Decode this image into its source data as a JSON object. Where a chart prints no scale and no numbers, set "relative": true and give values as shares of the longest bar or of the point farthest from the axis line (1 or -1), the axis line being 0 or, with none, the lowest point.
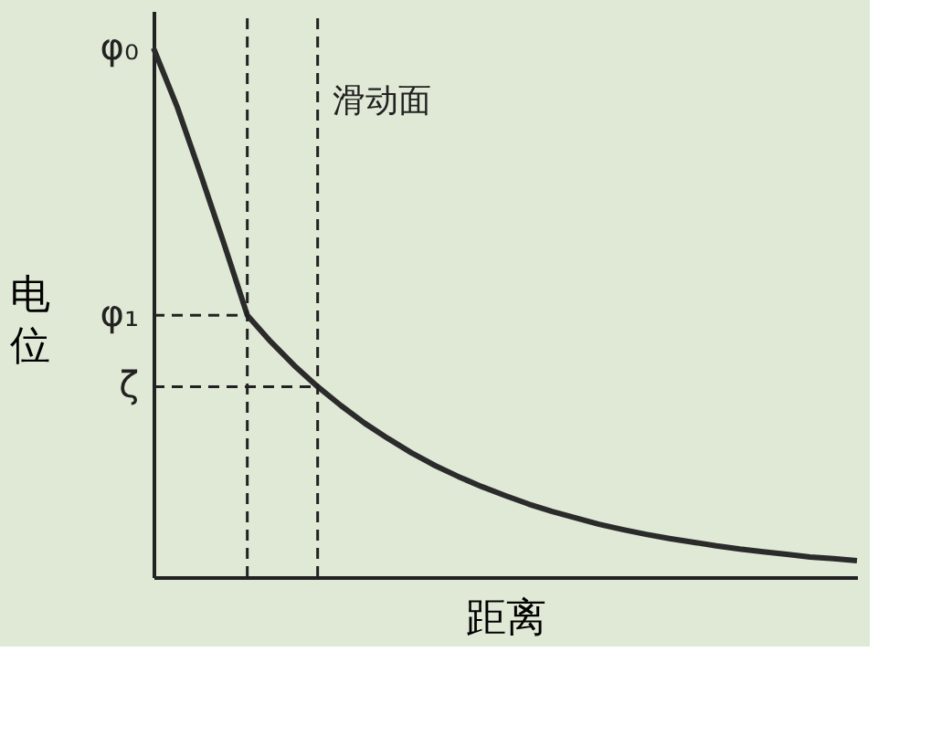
{
  "chart_data": {
    "type": "line",
    "relative": true,
    "xlabel": "距离",
    "ylabel": "电位",
    "categories": [
      null,
      null,
      null,
      null,
      null,
      null,
      null,
      null,
      null,
      null,
      null,
      null,
      null,
      null,
      null,
      null,
      null,
      null,
      null,
      null,
      null,
      null,
      null,
      null,
      null,
      null,
      null,
      null,
      null,
      null,
      null
    ],
    "series": [
      {
        "color": "#2b2b2b",
        "values": [
          1,
          0.89,
          0.763,
          0.631,
          0.495,
          0.445,
          0.4,
          0.36,
          0.324,
          0.291,
          0.262,
          0.235,
          0.211,
          0.19,
          0.171,
          0.154,
          0.138,
          0.124,
          0.112,
          0.1,
          0.09,
          0.081,
          0.073,
          0.066,
          0.059,
          0.053,
          0.048,
          0.043,
          0.038,
          0.035,
          0.031
        ]
      }
    ],
    "annotations": [
      "φ₀",
      "滑动面"
    ],
    "ref_lines": [
      {
        "axis": "y",
        "value": 0.495,
        "label": "φ₁",
        "line_style": "dashed"
      },
      {
        "axis": "y",
        "value": 0.36,
        "label": "ζ",
        "line_style": "dashed"
      }
    ],
    "grid": false
  }
}
